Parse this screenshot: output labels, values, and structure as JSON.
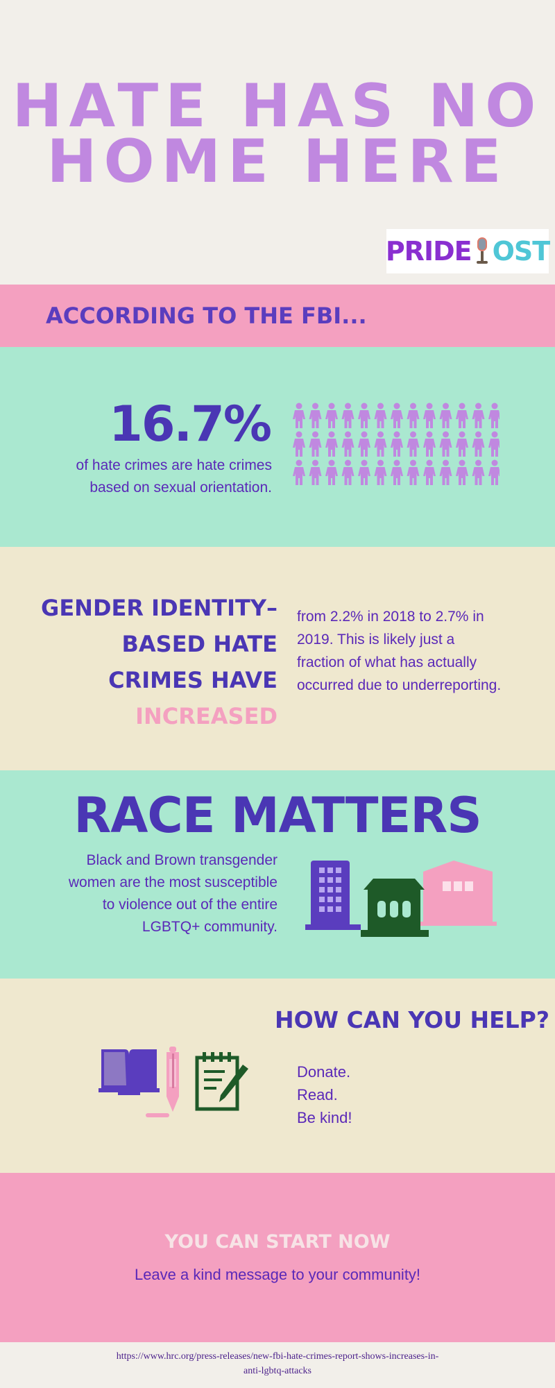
{
  "header": {
    "title_line1": "HATE HAS NO",
    "title_line2": "HOME HERE",
    "logo": {
      "part1": "PRIDE",
      "part2": "OST",
      "icon": "microphone-icon"
    }
  },
  "fbi_band": {
    "text": "ACCORDING TO THE FBI..."
  },
  "stat": {
    "percent": "16.7%",
    "description": "of hate crimes are hate crimes based on sexual orientation.",
    "icon": "person-icon",
    "icon_color": "#c088e0"
  },
  "gender": {
    "heading_line1": "GENDER IDENTITY–",
    "heading_line2": "BASED HATE",
    "heading_line3": "CRIMES  HAVE",
    "heading_highlight": "INCREASED",
    "description": "from 2.2% in 2018 to 2.7% in 2019. This is likely just a fraction of what has actually occurred due to underreporting."
  },
  "race": {
    "title": "RACE MATTERS",
    "description": "Black and Brown transgender women are the most susceptible to violence out of the entire LGBTQ+ community.",
    "icons": [
      "office-building-icon",
      "house-icon",
      "pink-building-icon"
    ]
  },
  "help": {
    "title": "HOW CAN YOU HELP?",
    "items": [
      "Donate.",
      "Read.",
      "Be kind!"
    ],
    "icons": [
      "open-book-icon",
      "pen-icon",
      "notepad-icon"
    ]
  },
  "start": {
    "title": "YOU CAN START NOW",
    "subtitle": "Leave a kind message to your community!"
  },
  "source": {
    "url_line1": "https://www.hrc.org/press-releases/new-fbi-hate-crimes-report-shows-increases-in-",
    "url_line2": "anti-lgbtq-attacks"
  },
  "colors": {
    "background": "#f2efea",
    "title_purple": "#c088e0",
    "navy_purple": "#4a36b4",
    "text_purple": "#5a28b8",
    "pink": "#f4a0c0",
    "mint": "#aae8d0",
    "cream": "#efe8cf",
    "dark_green": "#1e5a28"
  }
}
